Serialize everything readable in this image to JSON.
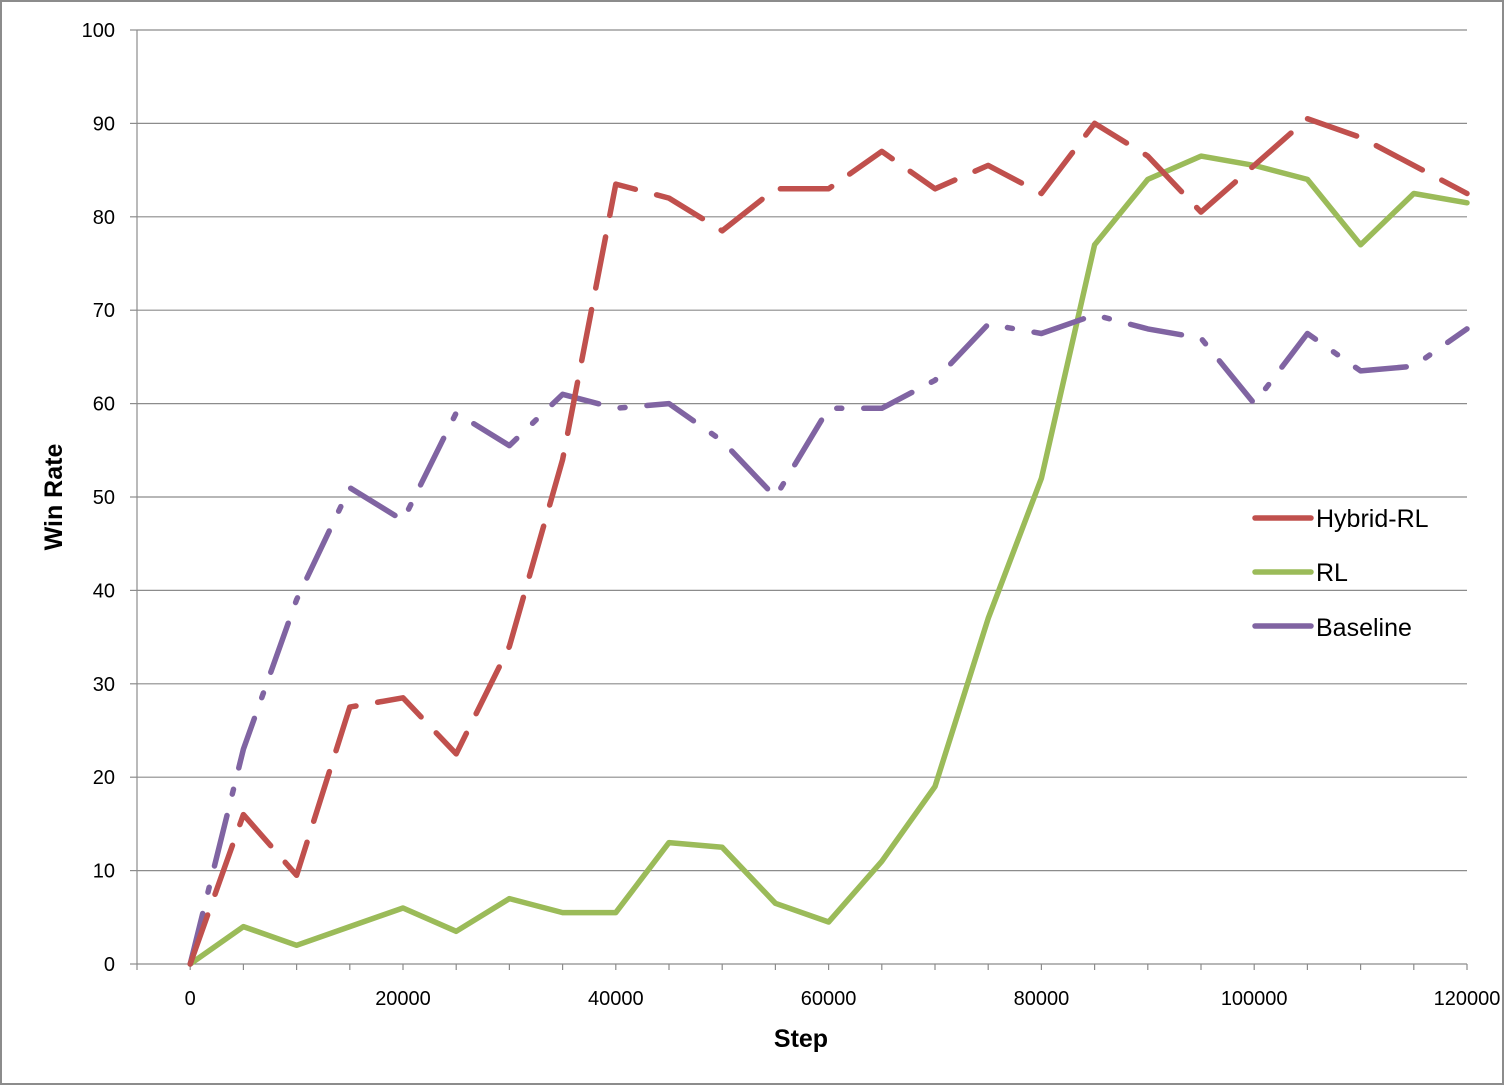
{
  "chart_data": {
    "type": "line",
    "title": "",
    "xlabel": "Step",
    "ylabel": "Win Rate",
    "xlim": [
      -5000,
      120000
    ],
    "ylim": [
      0,
      100
    ],
    "x_ticks": [
      "0",
      "20000",
      "40000",
      "60000",
      "80000",
      "100000",
      "120000"
    ],
    "y_ticks": [
      "0",
      "10",
      "20",
      "30",
      "40",
      "50",
      "60",
      "70",
      "80",
      "90",
      "100"
    ],
    "grid": "horizontal",
    "legend_position": "right",
    "x": [
      0,
      5000,
      10000,
      15000,
      20000,
      25000,
      30000,
      35000,
      40000,
      45000,
      50000,
      55000,
      60000,
      65000,
      70000,
      75000,
      80000,
      85000,
      90000,
      95000,
      100000,
      105000,
      110000,
      115000,
      120000
    ],
    "series": [
      {
        "name": "Hybrid-RL",
        "color": "#c0504d",
        "dash": "dashed",
        "values": [
          0,
          16,
          9.5,
          27.5,
          28.5,
          22.5,
          34,
          54,
          83.5,
          82,
          78.5,
          83,
          83,
          87,
          83,
          85.5,
          82.5,
          90,
          86.5,
          80.5,
          85.5,
          90.5,
          88.5,
          85.5,
          82.5
        ]
      },
      {
        "name": "RL",
        "color": "#9bbb59",
        "dash": "solid",
        "values": [
          0,
          4,
          2,
          4,
          6,
          3.5,
          7,
          5.5,
          5.5,
          13,
          12.5,
          6.5,
          4.5,
          11,
          19,
          37,
          52,
          77,
          84,
          86.5,
          85.5,
          84,
          77,
          82.5,
          81.5
        ]
      },
      {
        "name": "Baseline",
        "color": "#8064a2",
        "dash": "dashdot",
        "values": [
          0,
          23,
          39,
          51,
          47.5,
          59,
          55.5,
          61,
          59.5,
          60,
          56,
          50,
          59.5,
          59.5,
          62.5,
          68.5,
          67.5,
          69.5,
          68,
          67,
          60,
          67.5,
          63.5,
          64,
          68
        ]
      }
    ]
  }
}
